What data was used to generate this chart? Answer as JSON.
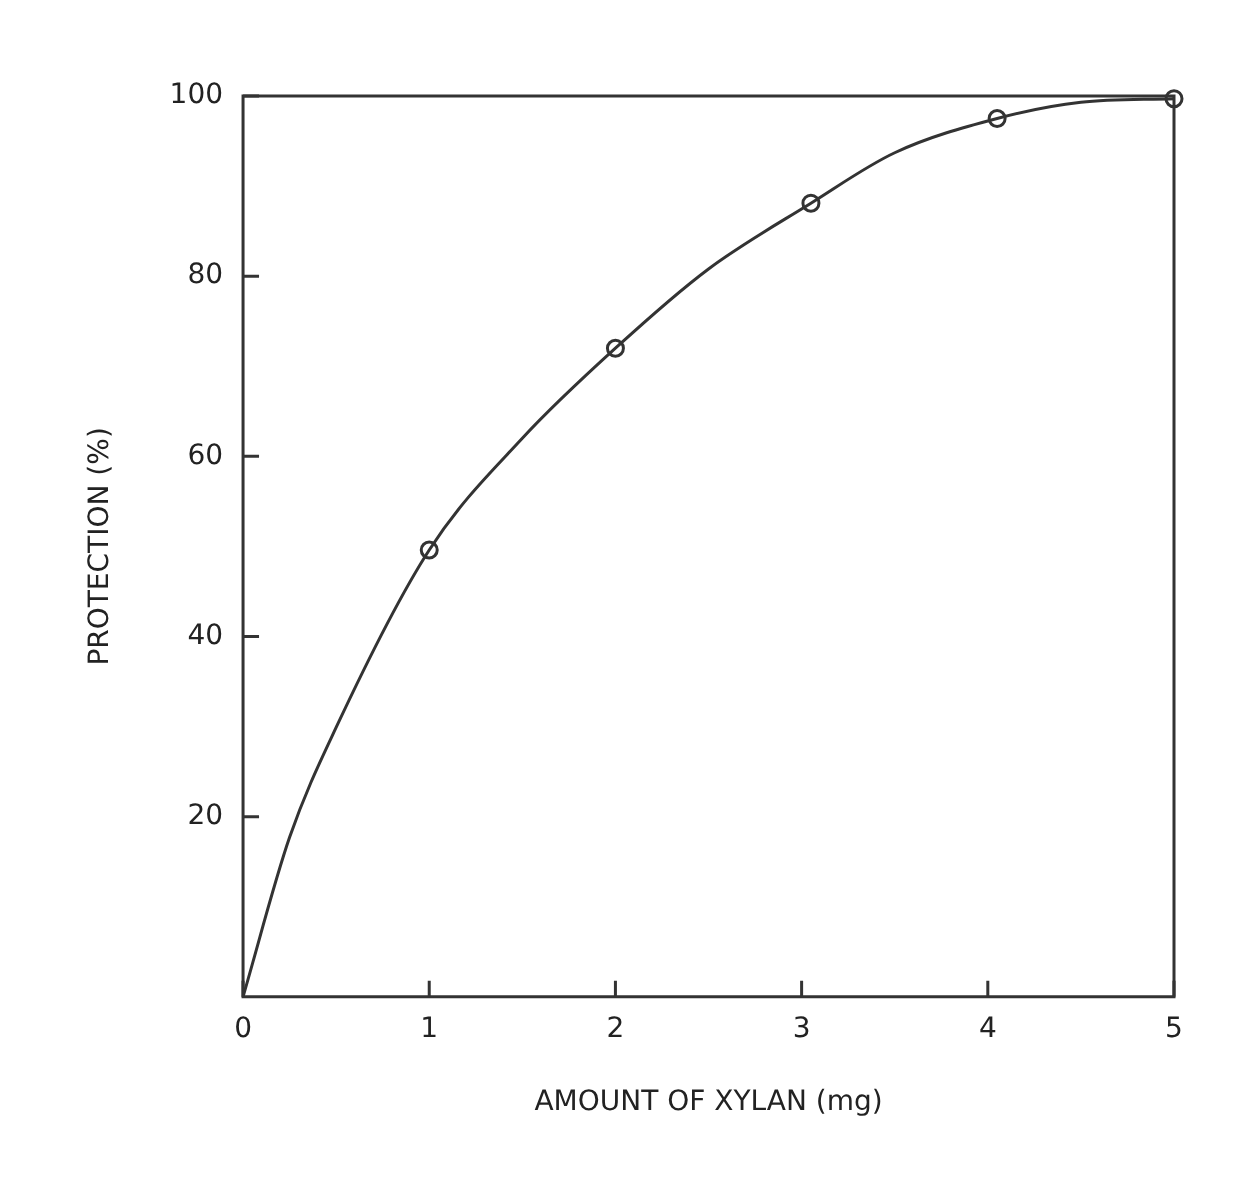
{
  "chart_data": {
    "type": "line",
    "xlabel": "AMOUNT OF XYLAN (mg)",
    "ylabel": "PROTECTION (%)",
    "xlim": [
      0,
      5
    ],
    "xticks": [
      0,
      1,
      2,
      3,
      4,
      5
    ],
    "ylim": [
      0,
      100
    ],
    "yticks": [
      20,
      40,
      60,
      80,
      100
    ],
    "grid": false,
    "legend": false,
    "series": [
      {
        "type": "line",
        "color": "#333333",
        "marker": "none",
        "x": [
          0,
          0.25,
          0.5,
          1,
          1.5,
          2,
          2.5,
          3.05,
          3.5,
          4.05,
          4.5,
          5
        ],
        "values": [
          0,
          17.7,
          29.9,
          49.6,
          62,
          72,
          80.8,
          88.1,
          93.7,
          97.5,
          99.3,
          99.7
        ]
      },
      {
        "type": "scatter",
        "color": "#333333",
        "marker": "circle",
        "x": [
          1,
          2,
          3.05,
          4.05,
          5
        ],
        "values": [
          49.6,
          72,
          88.1,
          97.5,
          99.7
        ]
      }
    ]
  }
}
